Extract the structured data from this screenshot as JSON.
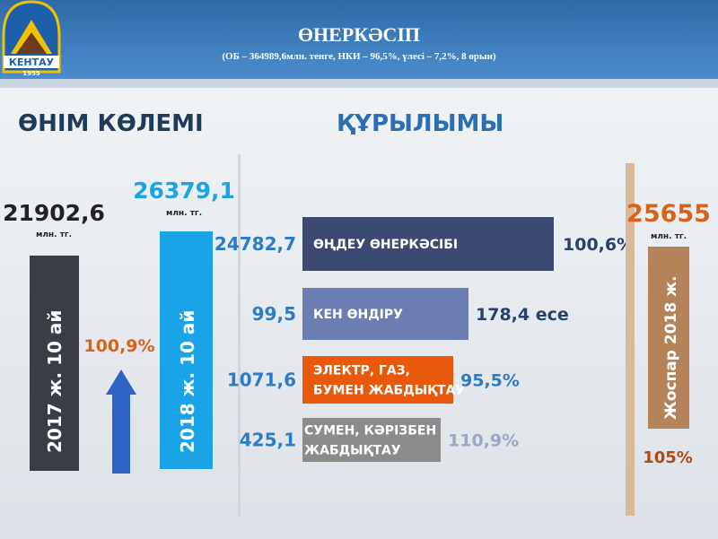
{
  "header": {
    "title": "ӨНЕРКӘСІП",
    "subtitle": "(ОБ – 364989,6млн. тенге, НКИ – 96,5%, үлесі – 7,2%, 8 орын)"
  },
  "logo": {
    "name": "КЕНТАУ",
    "year": "1955"
  },
  "volume": {
    "heading": "ӨНІМ КӨЛЕМІ",
    "prev": {
      "value": "21902,6",
      "unit": "млн. тг.",
      "label": "2017 ж. 10 ай"
    },
    "current": {
      "value": "26379,1",
      "unit": "млн. тг.",
      "label": "2018 ж. 10 ай"
    },
    "growth": "100,9%"
  },
  "structure": {
    "heading": "ҚҰРЫЛЫМЫ",
    "items": [
      {
        "value": "24782,7",
        "label": [
          "ӨҢДЕУ ӨНЕРКӘСІБІ"
        ],
        "change": "100,6%"
      },
      {
        "value": "99,5",
        "label": [
          "КЕН ӨНДІРУ"
        ],
        "change": "178,4 есе"
      },
      {
        "value": "1071,6",
        "label": [
          "ЭЛЕКТР, ГАЗ,",
          "БУМЕН ЖАБДЫҚТАУ"
        ],
        "change": "95,5%"
      },
      {
        "value": "425,1",
        "label": [
          "СУМЕН, КӘРІЗБЕН",
          "ЖАБДЫҚТАУ"
        ],
        "change": "110,9%"
      }
    ]
  },
  "plan": {
    "value": "25655",
    "unit": "млн. тг.",
    "label": "Жоспар 2018 ж.",
    "percent": "105%"
  }
}
